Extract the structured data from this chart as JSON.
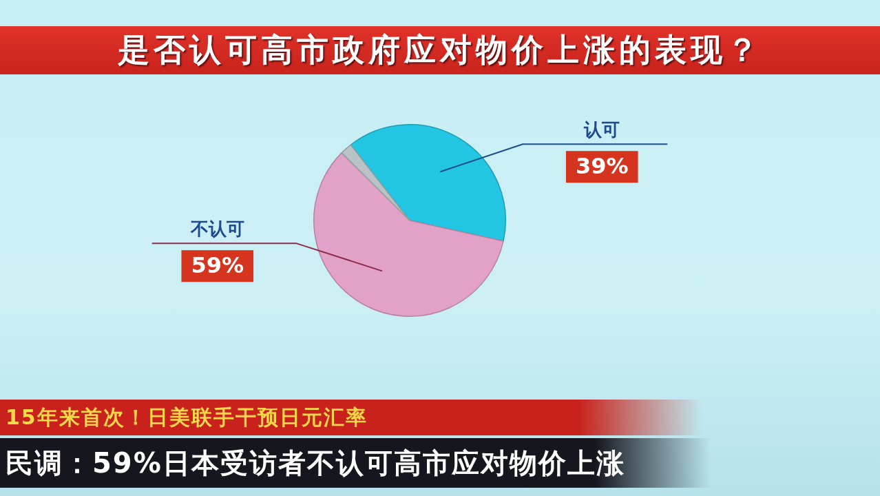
{
  "chart_data": {
    "type": "pie",
    "title": "是否认可高市政府应对物价上涨的表现？",
    "categories": [
      "认可",
      "不认可",
      null
    ],
    "values": [
      39,
      59,
      2
    ],
    "colors": [
      "#22c6e2",
      "#e2a2c8",
      "#b9c3c7"
    ],
    "value_labels": [
      "39%",
      "59%",
      null
    ],
    "annotations": [
      "15年来首次！日美联手干预日元汇率",
      "民调：59%日本受访者不认可高市应对物价上涨"
    ]
  }
}
